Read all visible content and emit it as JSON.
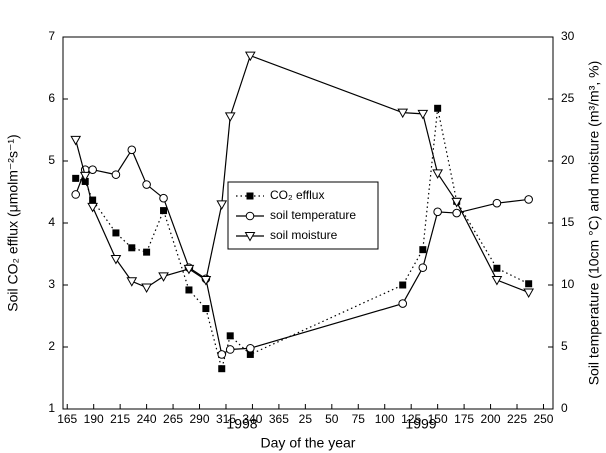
{
  "chart_data": {
    "type": "line",
    "xlabel": "Day of the year",
    "ylabel": "Soil CO₂ efflux (μmolm⁻²s⁻¹)",
    "y2label": "Soil temperature (10cm °C) and moisture (m³/m³, %)",
    "annotations": [
      "1998",
      "1999"
    ],
    "x": [
      173,
      182,
      189,
      211,
      226,
      240,
      256,
      280,
      296,
      311,
      319,
      338,
      482,
      501,
      515,
      533,
      571,
      601
    ],
    "xlim": [
      161,
      624
    ],
    "xticks": [
      165,
      190,
      215,
      240,
      265,
      290,
      315,
      340,
      365,
      {
        "value": 390,
        "label": "25"
      },
      {
        "value": 415,
        "label": "50"
      },
      {
        "value": 440,
        "label": "75"
      },
      {
        "value": 465,
        "label": "100"
      },
      {
        "value": 490,
        "label": "125"
      },
      {
        "value": 515,
        "label": "150"
      },
      {
        "value": 540,
        "label": "175"
      },
      {
        "value": 565,
        "label": "200"
      },
      {
        "value": 590,
        "label": "225"
      },
      {
        "value": 615,
        "label": "250"
      }
    ],
    "ylim": [
      1,
      7
    ],
    "yticks": [
      1,
      2,
      3,
      4,
      5,
      6,
      7
    ],
    "y2lim": [
      0,
      30
    ],
    "y2ticks": [
      0,
      5,
      10,
      15,
      20,
      25,
      30
    ],
    "legend": "center",
    "series": [
      {
        "name": "CO₂ efflux",
        "color": "#000000",
        "line_style": "dotted",
        "marker": "square",
        "values": [
          4.72,
          4.67,
          4.37,
          3.84,
          3.6,
          3.53,
          4.2,
          2.92,
          2.62,
          1.65,
          2.18,
          1.88,
          3.0,
          3.57,
          5.85,
          4.35,
          3.27,
          3.02
        ]
      },
      {
        "name": "soil temperature",
        "color": "#000000",
        "line_style": "solid",
        "marker": "circle",
        "axis": "y2",
        "values": [
          17.3,
          19.3,
          19.3,
          18.9,
          20.9,
          18.1,
          17.0,
          11.4,
          10.5,
          4.4,
          4.8,
          4.9,
          8.5,
          11.4,
          15.9,
          15.8,
          16.6,
          16.9
        ]
      },
      {
        "name": "soil moisture",
        "color": "#000000",
        "line_style": "solid",
        "marker": "triangle",
        "axis": "y2",
        "values": [
          21.7,
          18.8,
          16.3,
          12.1,
          10.3,
          9.8,
          10.7,
          11.3,
          10.4,
          16.5,
          23.6,
          28.5,
          23.9,
          23.8,
          19.0,
          16.7,
          10.4,
          9.4
        ]
      }
    ]
  }
}
